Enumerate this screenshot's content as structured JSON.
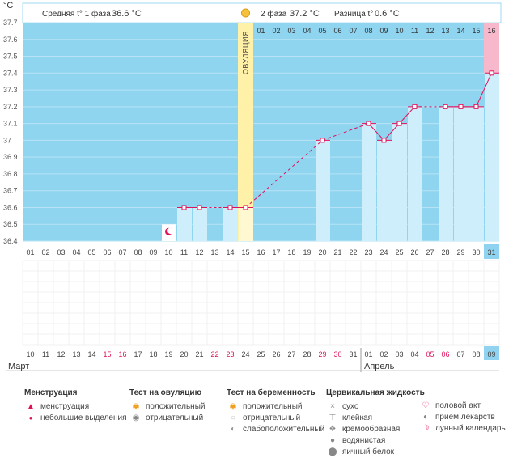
{
  "header": {
    "phase1_label": "Средняя t° 1 фаза",
    "phase1_value": "36.6 °C",
    "phase2_label": "2 фаза",
    "phase2_value": "37.2 °C",
    "diff_label": "Разница t°",
    "diff_value": "0.6 °C"
  },
  "chart_data": {
    "type": "line",
    "title": "",
    "ylabel": "°C",
    "ylim": [
      36.4,
      37.7
    ],
    "y_ticks": [
      "37.7",
      "37.6",
      "37.5",
      "37.4",
      "37.3",
      "37.2",
      "37.1",
      "37",
      "36.9",
      "36.8",
      "36.7",
      "36.6",
      "36.5",
      "36.4"
    ],
    "ovulation_day": 15,
    "ovulation_label": "ОВУЛЯЦИЯ",
    "luteal_days": [
      "01",
      "02",
      "03",
      "04",
      "05",
      "06",
      "07",
      "08",
      "09",
      "10",
      "11",
      "12",
      "13",
      "14",
      "15",
      "16"
    ],
    "cycle_days": [
      "01",
      "02",
      "03",
      "04",
      "05",
      "06",
      "07",
      "08",
      "09",
      "10",
      "11",
      "12",
      "13",
      "14",
      "15",
      "16",
      "17",
      "18",
      "19",
      "20",
      "21",
      "22",
      "23",
      "24",
      "25",
      "26",
      "27",
      "28",
      "29",
      "30",
      "31"
    ],
    "dates": [
      "10",
      "11",
      "12",
      "13",
      "14",
      "15",
      "16",
      "17",
      "18",
      "19",
      "20",
      "21",
      "22",
      "23",
      "24",
      "25",
      "26",
      "27",
      "28",
      "29",
      "30",
      "31",
      "01",
      "02",
      "03",
      "04",
      "05",
      "06",
      "07",
      "08",
      "09"
    ],
    "highlight_date_idx": [
      5,
      6,
      12,
      13,
      19,
      20,
      26,
      27
    ],
    "months": [
      "Март",
      "Апрель"
    ],
    "temperatures": [
      {
        "day": 11,
        "temp": 36.6
      },
      {
        "day": 12,
        "temp": 36.6
      },
      {
        "day": 14,
        "temp": 36.6
      },
      {
        "day": 15,
        "temp": 36.6
      },
      {
        "day": 20,
        "temp": 37.0
      },
      {
        "day": 23,
        "temp": 37.1
      },
      {
        "day": 24,
        "temp": 37.0
      },
      {
        "day": 25,
        "temp": 37.1
      },
      {
        "day": 26,
        "temp": 37.2
      },
      {
        "day": 28,
        "temp": 37.2
      },
      {
        "day": 29,
        "temp": 37.2
      },
      {
        "day": 30,
        "temp": 37.2
      },
      {
        "day": 31,
        "temp": 37.4
      }
    ],
    "dashed_segments": [
      [
        15,
        20
      ],
      [
        20,
        23
      ]
    ]
  },
  "legend": {
    "menstruation": {
      "title": "Менструация",
      "items": [
        "менструация",
        "небольшие выделения"
      ]
    },
    "ovulation_test": {
      "title": "Тест на овуляцию",
      "items": [
        "положительный",
        "отрицательный"
      ]
    },
    "pregnancy_test": {
      "title": "Тест на беременность",
      "items": [
        "положительный",
        "отрицательный",
        "слабоположительный"
      ]
    },
    "cervical": {
      "title": "Цервикальная жидкость",
      "items": [
        "сухо",
        "клейкая",
        "кремообразная",
        "водянистая",
        "яичный белок"
      ]
    },
    "other": {
      "items": [
        "половой акт",
        "прием лекарств",
        "лунный календарь"
      ]
    }
  },
  "colors": {
    "blue": "#90d5f0",
    "light_blue": "#cfeefb",
    "ovulation": "#fff2a8",
    "pink": "#f8b8cc",
    "accent": "#e0105a"
  }
}
